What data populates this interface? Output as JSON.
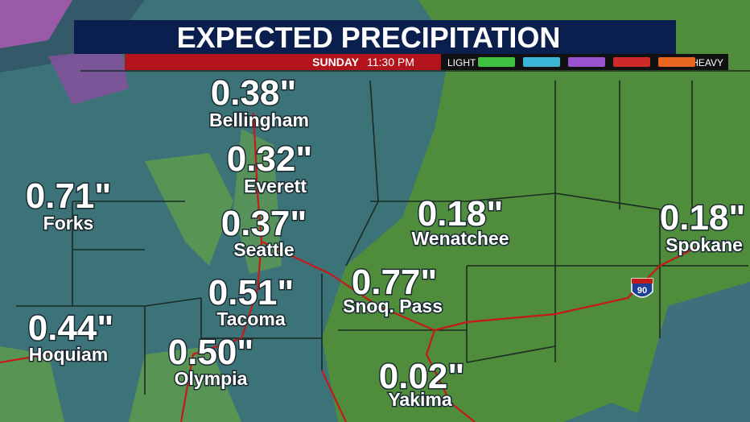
{
  "header": {
    "title": "EXPECTED PRECIPITATION",
    "day": "SUNDAY",
    "time": "11:30 PM"
  },
  "legend": {
    "low": "LIGHT",
    "high": "HEAVY",
    "colors": [
      "#3fc23f",
      "#3cb6d6",
      "#9a52cf",
      "#cf2a2a",
      "#e8661f"
    ]
  },
  "highway": "90",
  "locations": [
    {
      "amount": "0.38\"",
      "name": "Bellingham"
    },
    {
      "amount": "0.32\"",
      "name": "Everett"
    },
    {
      "amount": "0.71\"",
      "name": "Forks"
    },
    {
      "amount": "0.37\"",
      "name": "Seattle"
    },
    {
      "amount": "0.18\"",
      "name": "Wenatchee"
    },
    {
      "amount": "0.18\"",
      "name": "Spokane"
    },
    {
      "amount": "0.77\"",
      "name": "Snoq. Pass"
    },
    {
      "amount": "0.51\"",
      "name": "Tacoma"
    },
    {
      "amount": "0.44\"",
      "name": "Hoquiam"
    },
    {
      "amount": "0.50\"",
      "name": "Olympia"
    },
    {
      "amount": "0.02\"",
      "name": "Yakima"
    }
  ]
}
